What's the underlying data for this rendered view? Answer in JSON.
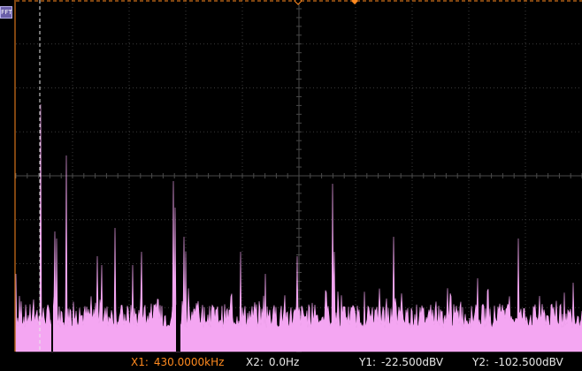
{
  "display": {
    "channel_marker": "FFT",
    "colors": {
      "trace": "#f4a6f2",
      "grid": "#3a3a3a",
      "cursor_x1": "#ff8a1f",
      "cursor_y": "#ff8a1f",
      "marker_bg": "#6a5fa8"
    }
  },
  "cursors": {
    "x1": {
      "label": "X1:",
      "value": "430.0000kHz"
    },
    "x2": {
      "label": "X2:",
      "value": "0.0Hz"
    },
    "y1": {
      "label": "Y1:",
      "value": "-22.500dBV"
    },
    "y2": {
      "label": "Y2:",
      "value": "-102.500dBV"
    }
  }
}
